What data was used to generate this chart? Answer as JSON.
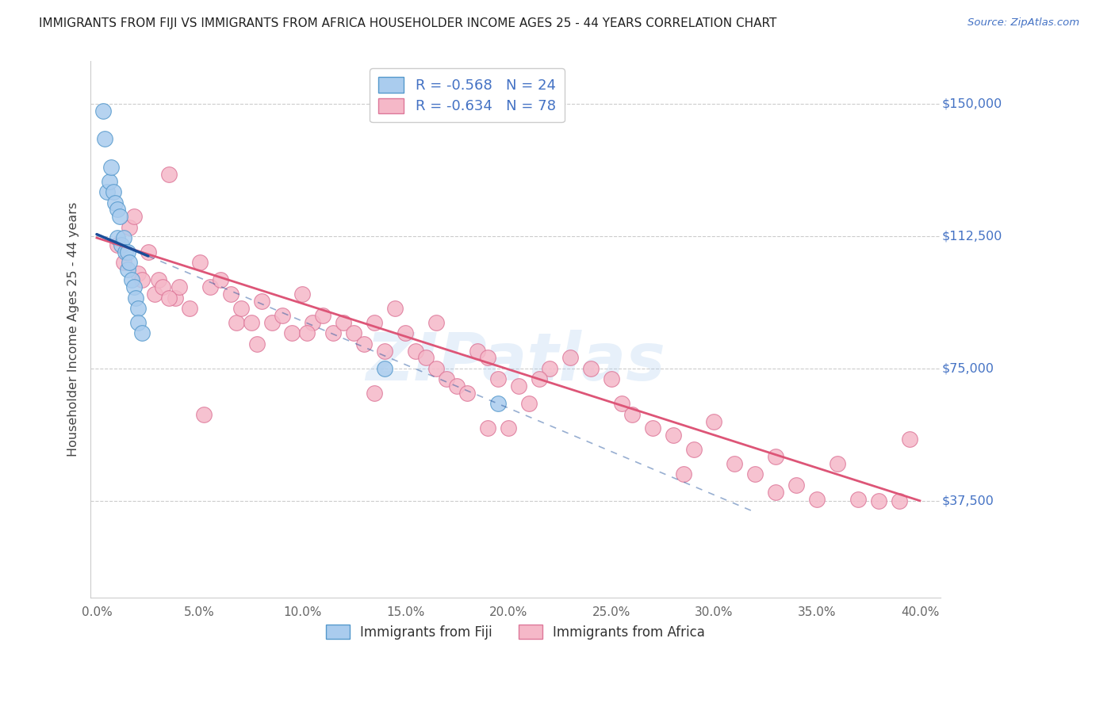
{
  "title": "IMMIGRANTS FROM FIJI VS IMMIGRANTS FROM AFRICA HOUSEHOLDER INCOME AGES 25 - 44 YEARS CORRELATION CHART",
  "source": "Source: ZipAtlas.com",
  "ylabel": "Householder Income Ages 25 - 44 years",
  "xtick_vals": [
    0,
    5,
    10,
    15,
    20,
    25,
    30,
    35,
    40
  ],
  "xtick_labels": [
    "0.0%",
    "5.0%",
    "10.0%",
    "15.0%",
    "20.0%",
    "25.0%",
    "30.0%",
    "35.0%",
    "40.0%"
  ],
  "ytick_positions": [
    37500,
    75000,
    112500,
    150000
  ],
  "ytick_labels": [
    "$37,500",
    "$75,000",
    "$112,500",
    "$150,000"
  ],
  "xlim": [
    -0.3,
    41.0
  ],
  "ylim": [
    10000,
    162000
  ],
  "fiji_color": "#aaccee",
  "fiji_edge_color": "#5599cc",
  "africa_color": "#f5b8c8",
  "africa_edge_color": "#dd7799",
  "fiji_line_color": "#1a4d99",
  "africa_line_color": "#dd5577",
  "legend_fiji_label": "R = -0.568   N = 24",
  "legend_africa_label": "R = -0.634   N = 78",
  "legend_label_fiji": "Immigrants from Fiji",
  "legend_label_africa": "Immigrants from Africa",
  "legend_text_color": "#4472c4",
  "watermark": "ZIPatlas",
  "bg_color": "#ffffff",
  "grid_color": "#cccccc",
  "title_color": "#222222",
  "source_color": "#4472c4",
  "ylabel_color": "#444444",
  "xtick_color": "#666666",
  "ytick_label_color": "#4472c4",
  "fiji_x": [
    0.3,
    0.4,
    0.5,
    0.6,
    0.7,
    0.8,
    0.9,
    1.0,
    1.0,
    1.1,
    1.2,
    1.3,
    1.4,
    1.5,
    1.5,
    1.6,
    1.7,
    1.8,
    1.9,
    2.0,
    2.0,
    2.2,
    14.0,
    19.5
  ],
  "fiji_y": [
    148000,
    140000,
    125000,
    128000,
    132000,
    125000,
    122000,
    120000,
    112000,
    118000,
    110000,
    112000,
    108000,
    108000,
    103000,
    105000,
    100000,
    98000,
    95000,
    92000,
    88000,
    85000,
    75000,
    65000
  ],
  "africa_x": [
    1.0,
    1.3,
    1.6,
    1.8,
    2.0,
    2.2,
    2.5,
    2.8,
    3.0,
    3.2,
    3.5,
    3.8,
    4.0,
    4.5,
    5.0,
    5.5,
    6.0,
    6.5,
    6.8,
    7.0,
    7.5,
    8.0,
    8.5,
    9.0,
    9.5,
    10.0,
    10.5,
    11.0,
    11.5,
    12.0,
    12.5,
    13.0,
    13.5,
    14.0,
    14.5,
    15.0,
    15.5,
    16.0,
    16.5,
    17.0,
    17.5,
    18.0,
    18.5,
    19.0,
    19.5,
    20.0,
    20.5,
    21.0,
    22.0,
    23.0,
    24.0,
    25.0,
    25.5,
    26.0,
    27.0,
    28.0,
    29.0,
    30.0,
    31.0,
    32.0,
    33.0,
    34.0,
    35.0,
    36.0,
    37.0,
    38.0,
    39.0,
    39.5,
    3.5,
    5.2,
    7.8,
    10.2,
    13.5,
    16.5,
    19.0,
    21.5,
    28.5,
    33.0
  ],
  "africa_y": [
    110000,
    105000,
    115000,
    118000,
    102000,
    100000,
    108000,
    96000,
    100000,
    98000,
    130000,
    95000,
    98000,
    92000,
    105000,
    98000,
    100000,
    96000,
    88000,
    92000,
    88000,
    94000,
    88000,
    90000,
    85000,
    96000,
    88000,
    90000,
    85000,
    88000,
    85000,
    82000,
    88000,
    80000,
    92000,
    85000,
    80000,
    78000,
    75000,
    72000,
    70000,
    68000,
    80000,
    78000,
    72000,
    58000,
    70000,
    65000,
    75000,
    78000,
    75000,
    72000,
    65000,
    62000,
    58000,
    56000,
    52000,
    60000,
    48000,
    45000,
    50000,
    42000,
    38000,
    48000,
    38000,
    37500,
    37500,
    55000,
    95000,
    62000,
    82000,
    85000,
    68000,
    88000,
    58000,
    72000,
    45000,
    40000
  ],
  "fiji_reg_x0": 0.0,
  "fiji_reg_y0": 113000,
  "fiji_reg_x1": 19.5,
  "fiji_reg_y1": 65000,
  "fiji_solid_end": 2.5,
  "africa_reg_x0": 0.0,
  "africa_reg_y0": 112000,
  "africa_reg_x1": 40.0,
  "africa_reg_y1": 37500
}
